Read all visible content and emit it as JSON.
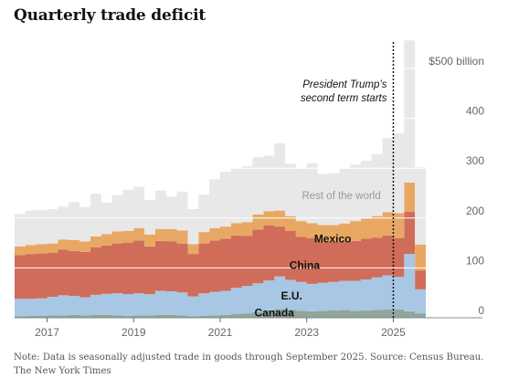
{
  "title": "Quarterly trade deficit",
  "note": "Note: Data is seasonally adjusted trade in goods through September 2025.  Source: Census Bureau.  The New York Times",
  "annotation": {
    "line1": "President Trump’s",
    "line2": "second term starts"
  },
  "chart_data": {
    "type": "area",
    "stacked": true,
    "title": "Quarterly trade deficit",
    "unit": "$ billion",
    "y_ticks": [
      {
        "value": 0,
        "label": "0"
      },
      {
        "value": 100,
        "label": "100"
      },
      {
        "value": 200,
        "label": "200"
      },
      {
        "value": 300,
        "label": "300"
      },
      {
        "value": 400,
        "label": "400"
      },
      {
        "value": 500,
        "label": "$500 billion"
      }
    ],
    "ylim": [
      0,
      550
    ],
    "x_ticks": [
      {
        "value": 2017,
        "label": "2017"
      },
      {
        "value": 2019,
        "label": "2019"
      },
      {
        "value": 2021,
        "label": "2021"
      },
      {
        "value": 2023,
        "label": "2023"
      },
      {
        "value": 2025,
        "label": "2025"
      }
    ],
    "xlim": [
      2016.25,
      2025.75
    ],
    "grid": true,
    "event_line": {
      "x": 2025.0,
      "label": "President Trump’s second term starts"
    },
    "x": [
      2016.25,
      2016.5,
      2016.75,
      2017.0,
      2017.25,
      2017.5,
      2017.75,
      2018.0,
      2018.25,
      2018.5,
      2018.75,
      2019.0,
      2019.25,
      2019.5,
      2019.75,
      2020.0,
      2020.25,
      2020.5,
      2020.75,
      2021.0,
      2021.25,
      2021.5,
      2021.75,
      2022.0,
      2022.25,
      2022.5,
      2022.75,
      2023.0,
      2023.25,
      2023.5,
      2023.75,
      2024.0,
      2024.25,
      2024.5,
      2024.75,
      2025.0,
      2025.25,
      2025.5
    ],
    "series": [
      {
        "name": "Canada",
        "color": "#8fa69a",
        "values": [
          3,
          4,
          4,
          5,
          5,
          6,
          5,
          6,
          6,
          5,
          4,
          5,
          5,
          6,
          6,
          5,
          3,
          4,
          5,
          6,
          8,
          9,
          11,
          15,
          18,
          16,
          14,
          13,
          14,
          15,
          16,
          14,
          15,
          16,
          17,
          17,
          13,
          9
        ]
      },
      {
        "name": "E.U.",
        "color": "#a8c7e4",
        "values": [
          35,
          34,
          35,
          37,
          40,
          38,
          36,
          40,
          42,
          44,
          43,
          44,
          42,
          48,
          47,
          46,
          40,
          45,
          47,
          48,
          52,
          55,
          58,
          60,
          65,
          60,
          58,
          55,
          56,
          57,
          58,
          60,
          62,
          65,
          68,
          65,
          115,
          48
        ]
      },
      {
        "name": "China",
        "color": "#cf6d5a",
        "values": [
          88,
          90,
          90,
          88,
          92,
          90,
          91,
          95,
          97,
          100,
          104,
          106,
          96,
          100,
          100,
          98,
          85,
          100,
          103,
          105,
          105,
          100,
          108,
          110,
          100,
          98,
          90,
          92,
          83,
          80,
          79,
          80,
          82,
          80,
          80,
          78,
          85,
          38
        ]
      },
      {
        "name": "Mexico",
        "color": "#e8a863",
        "values": [
          17,
          18,
          19,
          19,
          20,
          22,
          21,
          22,
          23,
          24,
          23,
          25,
          24,
          24,
          25,
          26,
          20,
          23,
          25,
          24,
          25,
          28,
          30,
          29,
          32,
          30,
          32,
          30,
          33,
          34,
          36,
          40,
          40,
          43,
          47,
          50,
          58,
          52
        ]
      },
      {
        "name": "Rest of the world",
        "color": "#e8e8e8",
        "values": [
          65,
          69,
          68,
          69,
          66,
          76,
          69,
          86,
          63,
          73,
          83,
          83,
          69,
          77,
          65,
          78,
          70,
          75,
          98,
          110,
          110,
          112,
          115,
          111,
          135,
          105,
          105,
          120,
          102,
          104,
          110,
          113,
          116,
          124,
          148,
          160,
          285,
          155
        ]
      }
    ],
    "series_labels": [
      {
        "series": "Mexico",
        "x": 2023.6,
        "y": 158
      },
      {
        "series": "China",
        "x": 2022.95,
        "y": 105
      },
      {
        "series": "E.U.",
        "x": 2022.65,
        "y": 44
      },
      {
        "series": "Canada",
        "x": 2022.25,
        "y": 10
      },
      {
        "series": "Rest of the world",
        "x": 2023.8,
        "y": 245
      }
    ]
  }
}
